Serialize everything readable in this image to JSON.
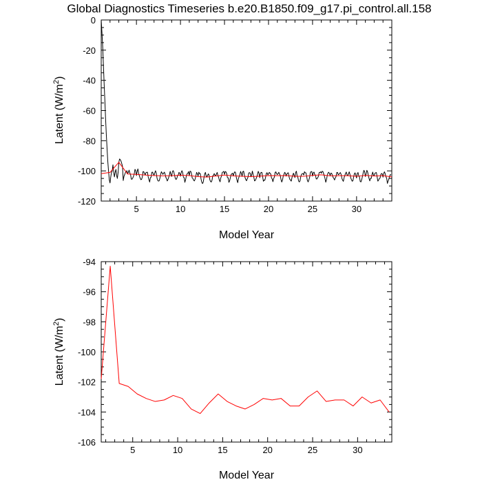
{
  "figure_title": "Global Diagnostics Timeseries b.e20.B1850.f09_g17.pi_control.all.158",
  "colors": {
    "monthly": "#000000",
    "annual": "#ff0000"
  },
  "chart_data": [
    {
      "type": "line",
      "xlabel": "Model Year",
      "ylabel": "Latent (W/m2)",
      "ylabel_parts": {
        "main": "Latent (W/m",
        "sup": "2",
        "close": ")"
      },
      "xlim": [
        1,
        34
      ],
      "ylim": [
        -120,
        0
      ],
      "xticks": [
        5,
        10,
        15,
        20,
        25,
        30
      ],
      "yticks": [
        0,
        -20,
        -40,
        -60,
        -80,
        -100,
        -120
      ],
      "series": [
        {
          "style": "monthly",
          "color": "#000000",
          "x": [
            1.0,
            1.08,
            1.17,
            1.25,
            1.33,
            1.42,
            1.5,
            1.58,
            1.67,
            1.75,
            1.83,
            1.92,
            2.0,
            2.08,
            2.17,
            2.25,
            2.33,
            2.42,
            2.5,
            2.58,
            2.67,
            2.75,
            2.83,
            2.92
          ],
          "y": [
            0,
            -8,
            -18,
            -30,
            -42,
            -54,
            -66,
            -76,
            -86,
            -94,
            -100,
            -106,
            -108,
            -104,
            -101,
            -100,
            -96,
            -101,
            -104,
            -101,
            -99,
            -103,
            -105,
            -101
          ]
        },
        {
          "style": "annual",
          "color": "#ff0000",
          "x": [
            1,
            2,
            3,
            4,
            5,
            6,
            7,
            8,
            9,
            10,
            11,
            12,
            13,
            14,
            15,
            16,
            17,
            18,
            19,
            20,
            21,
            22,
            23,
            24,
            25,
            26,
            27,
            28,
            29,
            30,
            31,
            32,
            33,
            34
          ],
          "y": [
            -101.8,
            -101.0,
            -94.3,
            -102.1,
            -102.3,
            -102.8,
            -103.1,
            -103.3,
            -103.2,
            -102.9,
            -103.1,
            -103.8,
            -104.1,
            -103.4,
            -102.8,
            -103.3,
            -103.6,
            -103.8,
            -103.5,
            -103.1,
            -103.2,
            -103.1,
            -103.6,
            -103.6,
            -103.0,
            -102.6,
            -103.3,
            -103.2,
            -103.2,
            -103.6,
            -103.0,
            -103.4,
            -103.2,
            -104.0
          ]
        }
      ],
      "seasonal_cycle": {
        "start_year": 3,
        "end_year": 34,
        "months_per_year": 12,
        "amplitude": 2.6,
        "pattern": [
          0,
          0.8,
          1.0,
          0.5,
          -0.3,
          -1.0,
          -1.3,
          -0.9,
          -0.2,
          0.5,
          0.9,
          0.6
        ]
      }
    },
    {
      "type": "line",
      "xlabel": "Model Year",
      "ylabel": "Latent (W/m2)",
      "ylabel_parts": {
        "main": "Latent (W/m",
        "sup": "2",
        "close": ")"
      },
      "xlim": [
        1.5,
        33.8
      ],
      "ylim": [
        -106,
        -94
      ],
      "xticks": [
        5,
        10,
        15,
        20,
        25,
        30
      ],
      "yticks": [
        -94,
        -96,
        -98,
        -100,
        -102,
        -104,
        -106
      ],
      "series": [
        {
          "style": "annual",
          "color": "#ff0000",
          "x": [
            1.5,
            2.5,
            3.5,
            4.5,
            5.5,
            6.5,
            7.5,
            8.5,
            9.5,
            10.5,
            11.5,
            12.5,
            13.5,
            14.5,
            15.5,
            16.5,
            17.5,
            18.5,
            19.5,
            20.5,
            21.5,
            22.5,
            23.5,
            24.5,
            25.5,
            26.5,
            27.5,
            28.5,
            29.5,
            30.5,
            31.5,
            32.5,
            33.5
          ],
          "y": [
            -101.8,
            -94.3,
            -102.1,
            -102.3,
            -102.8,
            -103.1,
            -103.3,
            -103.2,
            -102.9,
            -103.1,
            -103.8,
            -104.1,
            -103.4,
            -102.8,
            -103.3,
            -103.6,
            -103.8,
            -103.5,
            -103.1,
            -103.2,
            -103.1,
            -103.6,
            -103.6,
            -103.0,
            -102.6,
            -103.3,
            -103.2,
            -103.2,
            -103.6,
            -103.0,
            -103.4,
            -103.2,
            -104.0
          ]
        }
      ]
    }
  ]
}
